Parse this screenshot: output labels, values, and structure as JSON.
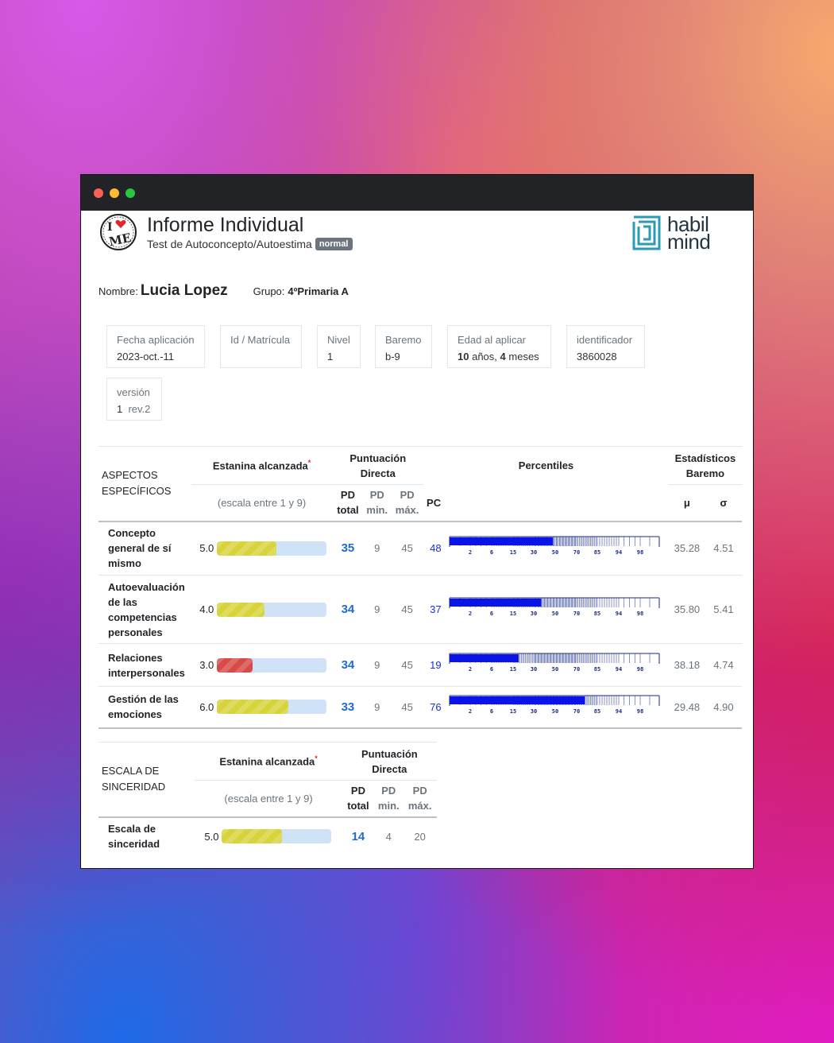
{
  "window": {
    "controls": [
      "close",
      "minimize",
      "maximize"
    ]
  },
  "header": {
    "title": "Informe Individual",
    "subtitle": "Test de Autoconcepto/Autoestima",
    "badge": "normal",
    "logo_left_text": "I ME",
    "brand": [
      "habil",
      "mind"
    ]
  },
  "person": {
    "name_label": "Nombre:",
    "name": "Lucia Lopez",
    "group_label": "Grupo:",
    "group": "4ºPrimaria A"
  },
  "info_cards": [
    {
      "label": "Fecha aplicación",
      "value": "2023-oct.-11"
    },
    {
      "label": "Id / Matrícula",
      "value": ""
    },
    {
      "label": "Nivel",
      "value": "1"
    },
    {
      "label": "Baremo",
      "value": "b-9"
    },
    {
      "label": "Edad al aplicar",
      "years": "10",
      "years_unit": "años,",
      "months": "4",
      "months_unit": "meses"
    },
    {
      "label": "identificador",
      "value": "3860028"
    },
    {
      "label": "versión",
      "version": "1",
      "rev": "rev.2"
    }
  ],
  "table_specific": {
    "section_label": "ASPECTOS ESPECÍFICOS",
    "col_estanina": "Estanina alcanzada",
    "asterisk": "*",
    "col_estanina_sub": "(escala entre 1 y 9)",
    "col_pd": "Puntuación Directa",
    "col_pd_total": "PD total",
    "col_pd_min": "PD min.",
    "col_pd_max": "PD máx.",
    "col_pc": "PC",
    "col_percentiles": "Percentiles",
    "col_stats": "Estadísticos Baremo",
    "col_mu": "μ",
    "col_sigma": "σ",
    "percentile_ticks": [
      "2",
      "6",
      "15",
      "30",
      "50",
      "70",
      "85",
      "94",
      "98"
    ],
    "rows": [
      {
        "name": "Concepto general de sí mismo",
        "estanina": "5.0",
        "estanina_value": 5,
        "color": "#d7d33a",
        "pd_total": "35",
        "pd_min": "9",
        "pd_max": "45",
        "pc": "48",
        "pc_value": 48,
        "mu": "35.28",
        "sigma": "4.51"
      },
      {
        "name": "Autoevaluación de las competencias personales",
        "estanina": "4.0",
        "estanina_value": 4,
        "color": "#d7d33a",
        "pd_total": "34",
        "pd_min": "9",
        "pd_max": "45",
        "pc": "37",
        "pc_value": 37,
        "mu": "35.80",
        "sigma": "5.41"
      },
      {
        "name": "Relaciones interpersonales",
        "estanina": "3.0",
        "estanina_value": 3,
        "color": "#d84a48",
        "pd_total": "34",
        "pd_min": "9",
        "pd_max": "45",
        "pc": "19",
        "pc_value": 19,
        "mu": "38.18",
        "sigma": "4.74"
      },
      {
        "name": "Gestión de las emociones",
        "estanina": "6.0",
        "estanina_value": 6,
        "color": "#d7d33a",
        "pd_total": "33",
        "pd_min": "9",
        "pd_max": "45",
        "pc": "76",
        "pc_value": 76,
        "mu": "29.48",
        "sigma": "4.90"
      }
    ]
  },
  "table_sincerity": {
    "section_label": "ESCALA DE SINCERIDAD",
    "col_estanina": "Estanina alcanzada",
    "asterisk": "*",
    "col_estanina_sub": "(escala entre 1 y 9)",
    "col_pd": "Puntuación Directa",
    "col_pd_total": "PD total",
    "col_pd_min": "PD min.",
    "col_pd_max": "PD máx.",
    "rows": [
      {
        "name": "Escala de sinceridad",
        "estanina": "5.0",
        "estanina_value": 5,
        "color": "#d7d33a",
        "pd_total": "14",
        "pd_min": "4",
        "pd_max": "20"
      }
    ]
  }
}
